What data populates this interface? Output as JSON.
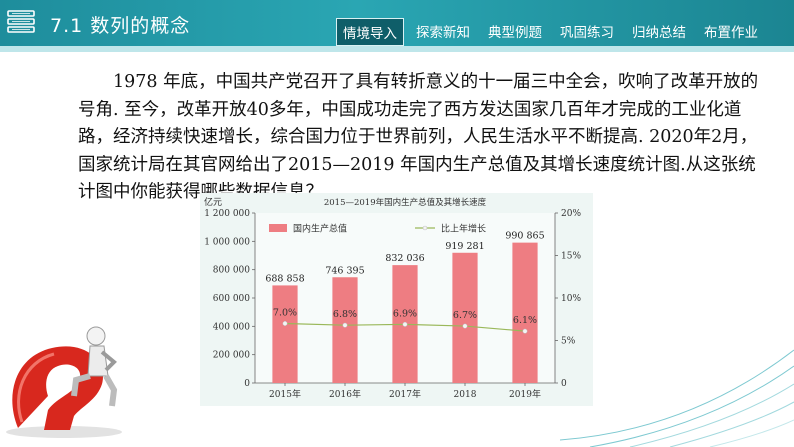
{
  "header": {
    "title": "7.1  数列的概念",
    "nav": [
      {
        "label": "情境导入",
        "active": true
      },
      {
        "label": "探索新知",
        "active": false
      },
      {
        "label": "典型例题",
        "active": false
      },
      {
        "label": "巩固练习",
        "active": false
      },
      {
        "label": "归纳总结",
        "active": false
      },
      {
        "label": "布置作业",
        "active": false
      }
    ]
  },
  "body_text": "1978 年底，中国共产党召开了具有转折意义的十一届三中全会，吹响了改革开放的号角.  至今，改革开放40多年，中国成功走完了西方发达国家几百年才完成的工业化道路，经济持续快速增长，综合国力位于世界前列，人民生活水平不断提高. 2020年2月，国家统计局在其官网给出了2015—2019 年国内生产总值及其增长速度统计图.从这张统计图中你能获得哪些数据信息？",
  "colors": {
    "header": "#2aa6b3",
    "bar": "#ee7d82",
    "line": "#9ab85a",
    "point": "#f4f4f4"
  },
  "icons": {
    "logo": "stacked-books-icon",
    "decor": "thinker-on-question-mark-figure"
  },
  "chart_data": {
    "type": "bar",
    "title": "2015—2019年国内生产总值及其增长速度",
    "y_unit": "亿元",
    "categories": [
      "2015年",
      "2016年",
      "2017年",
      "2018",
      "2019年"
    ],
    "series": [
      {
        "name": "国内生产总值",
        "type": "bar",
        "axis": "left",
        "values": [
          688858,
          746395,
          832036,
          919281,
          990865
        ],
        "labels": [
          "688 858",
          "746 395",
          "832 036",
          "919 281",
          "990 865"
        ]
      },
      {
        "name": "比上年增长",
        "type": "line",
        "axis": "right",
        "values": [
          7.0,
          6.8,
          6.9,
          6.7,
          6.1
        ],
        "labels": [
          "7.0%",
          "6.8%",
          "6.9%",
          "6.7%",
          "6.1%"
        ]
      }
    ],
    "ylim_left": [
      0,
      1200000
    ],
    "yticks_left": [
      "0",
      "200 000",
      "400 000",
      "600 000",
      "800 000",
      "1 000 000",
      "1 200 000"
    ],
    "ylim_right": [
      0,
      20
    ],
    "yticks_right": [
      "0",
      "5%",
      "10%",
      "15%",
      "20%"
    ],
    "legend_position": "top-left",
    "grid": false
  }
}
